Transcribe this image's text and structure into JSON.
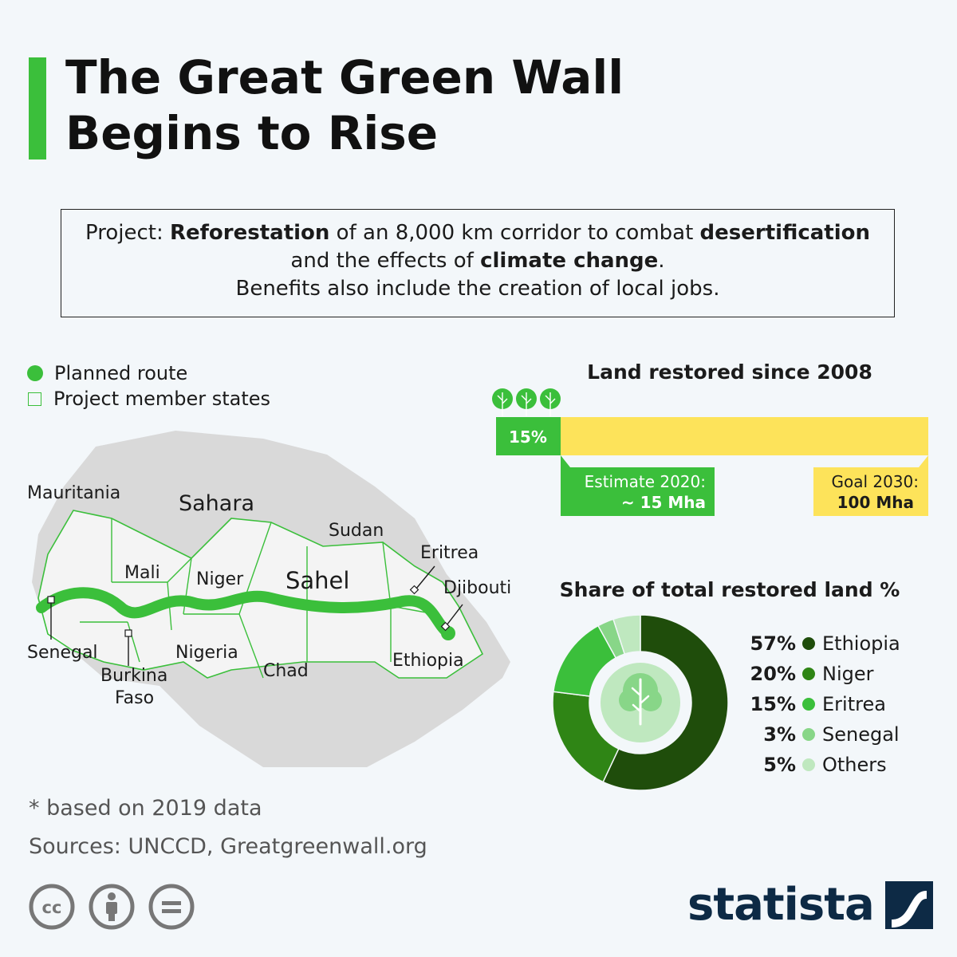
{
  "title_lines": [
    "The Great Green Wall",
    "Begins to Rise"
  ],
  "project": {
    "line1_pre": "Project: ",
    "line1_b1": "Reforestation",
    "line1_mid": " of an 8,000 km corridor to combat ",
    "line1_b2": "desertification",
    "line2_pre": "and the effects of ",
    "line2_b": "climate change",
    "line2_post": ".",
    "line3": "Benefits also include the creation of local jobs."
  },
  "legend": {
    "planned_route": "Planned route",
    "member_states": "Project member states"
  },
  "map_labels": {
    "sahara": "Sahara",
    "sahel": "Sahel",
    "mauritania": "Mauritania",
    "mali": "Mali",
    "niger": "Niger",
    "sudan": "Sudan",
    "eritrea": "Eritrea",
    "djibouti": "Djibouti",
    "senegal": "Senegal",
    "burkina_1": "Burkina",
    "burkina_2": "Faso",
    "nigeria": "Nigeria",
    "chad": "Chad",
    "ethiopia": "Ethiopia"
  },
  "land_restored": {
    "title": "Land restored since 2008",
    "percent_label": "15%",
    "progress_fraction": 0.15,
    "estimate_label": "Estimate 2020:",
    "estimate_value": "~ 15 Mha",
    "goal_label": "Goal 2030:",
    "goal_value": "100 Mha"
  },
  "share": {
    "title": "Share of total restored land %"
  },
  "chart_data": {
    "type": "pie",
    "title": "Share of total restored land %",
    "categories": [
      "Ethiopia",
      "Niger",
      "Eritrea",
      "Senegal",
      "Others"
    ],
    "values": [
      57,
      20,
      15,
      3,
      5
    ],
    "labels": [
      "57%",
      "20%",
      "15%",
      "3%",
      "5%"
    ],
    "colors": [
      "#1f4d0b",
      "#2f8515",
      "#3bbf3b",
      "#88d688",
      "#bfe8bf"
    ]
  },
  "footnote": "* based on 2019 data",
  "sources": "Sources: UNCCD, Greatgreenwall.org",
  "brand": "statista",
  "colors": {
    "accent": "#3bbf3b",
    "yellow": "#fde35a",
    "map_land": "#d9d9d9",
    "brand": "#0d2a45"
  }
}
